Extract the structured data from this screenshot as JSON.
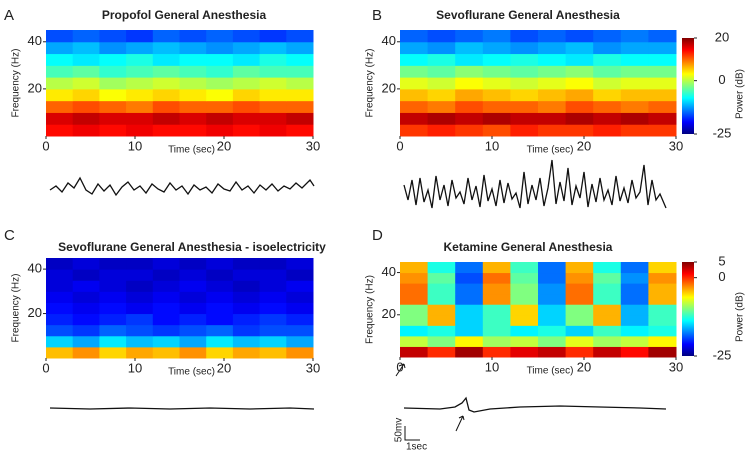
{
  "chart_data": [
    {
      "type": "heatmap",
      "panel": "A",
      "title": "Propofol General Anesthesia",
      "xlabel": "Time (sec)",
      "ylabel": "Frequency (Hz)",
      "xlim": [
        0,
        30
      ],
      "ylim": [
        0,
        45
      ],
      "xticks": [
        0,
        10,
        20,
        30
      ],
      "yticks": [
        20,
        40
      ],
      "clim": [
        -25,
        20
      ],
      "z": [
        [
          14,
          15,
          14,
          15,
          14,
          14,
          15,
          14,
          15,
          14
        ],
        [
          16,
          17,
          16,
          16,
          17,
          16,
          17,
          16,
          16,
          17
        ],
        [
          10,
          11,
          10,
          9,
          11,
          10,
          10,
          11,
          10,
          10
        ],
        [
          4,
          5,
          3,
          4,
          5,
          4,
          3,
          5,
          4,
          4
        ],
        [
          0,
          1,
          -1,
          0,
          1,
          0,
          -1,
          0,
          1,
          0
        ],
        [
          -5,
          -4,
          -6,
          -5,
          -4,
          -5,
          -6,
          -4,
          -5,
          -5
        ],
        [
          -8,
          -9,
          -8,
          -7,
          -9,
          -8,
          -8,
          -9,
          -7,
          -8
        ],
        [
          -12,
          -11,
          -13,
          -12,
          -11,
          -12,
          -13,
          -12,
          -11,
          -12
        ],
        [
          -16,
          -15,
          -16,
          -17,
          -15,
          -16,
          -15,
          -16,
          -17,
          -16
        ]
      ]
    },
    {
      "type": "heatmap",
      "panel": "B",
      "title": "Sevoflurane  General Anesthesia",
      "xlabel": "Time (sec)",
      "ylabel": "Frequency (Hz)",
      "xlim": [
        0,
        30
      ],
      "ylim": [
        0,
        45
      ],
      "xticks": [
        0,
        10,
        20,
        30
      ],
      "yticks": [
        20,
        40
      ],
      "clim": [
        -25,
        20
      ],
      "colorbar_label": "Power (dB)",
      "colorbar_ticks": [
        20,
        0,
        -25
      ],
      "z": [
        [
          12,
          13,
          12,
          11,
          13,
          12,
          12,
          13,
          12,
          12
        ],
        [
          17,
          18,
          17,
          18,
          17,
          17,
          18,
          17,
          18,
          17
        ],
        [
          10,
          9,
          11,
          10,
          10,
          9,
          11,
          10,
          9,
          10
        ],
        [
          6,
          5,
          7,
          6,
          5,
          6,
          7,
          5,
          6,
          6
        ],
        [
          2,
          1,
          3,
          2,
          1,
          2,
          3,
          1,
          2,
          2
        ],
        [
          -3,
          -4,
          -2,
          -3,
          -4,
          -3,
          -2,
          -4,
          -3,
          -3
        ],
        [
          -8,
          -7,
          -9,
          -8,
          -7,
          -8,
          -9,
          -7,
          -8,
          -8
        ],
        [
          -12,
          -13,
          -11,
          -12,
          -13,
          -12,
          -11,
          -13,
          -12,
          -12
        ],
        [
          -15,
          -16,
          -15,
          -14,
          -16,
          -15,
          -16,
          -15,
          -14,
          -15
        ]
      ]
    },
    {
      "type": "heatmap",
      "panel": "C",
      "title": "Sevoflurane General Anesthesia - isoelectricity",
      "xlabel": "Time (sec)",
      "ylabel": "Frequency (Hz)",
      "xlim": [
        0,
        30
      ],
      "ylim": [
        0,
        45
      ],
      "xticks": [
        0,
        10,
        20,
        30
      ],
      "yticks": [
        20,
        40
      ],
      "clim": [
        -25,
        20
      ],
      "z": [
        [
          6,
          8,
          5,
          7,
          6,
          8,
          5,
          7,
          6,
          8
        ],
        [
          -10,
          -12,
          -9,
          -11,
          -10,
          -12,
          -9,
          -11,
          -10,
          -12
        ],
        [
          -16,
          -17,
          -15,
          -16,
          -17,
          -16,
          -15,
          -17,
          -16,
          -16
        ],
        [
          -18,
          -19,
          -18,
          -17,
          -19,
          -18,
          -19,
          -18,
          -17,
          -18
        ],
        [
          -19,
          -20,
          -19,
          -20,
          -19,
          -20,
          -19,
          -20,
          -19,
          -20
        ],
        [
          -20,
          -21,
          -20,
          -21,
          -20,
          -21,
          -20,
          -21,
          -20,
          -21
        ],
        [
          -21,
          -20,
          -21,
          -22,
          -21,
          -20,
          -21,
          -22,
          -21,
          -20
        ],
        [
          -21,
          -22,
          -21,
          -21,
          -22,
          -21,
          -22,
          -21,
          -21,
          -22
        ],
        [
          -22,
          -21,
          -22,
          -22,
          -21,
          -22,
          -21,
          -22,
          -22,
          -21
        ]
      ]
    },
    {
      "type": "heatmap",
      "panel": "D",
      "title": "Ketamine General Anesthesia",
      "xlabel": "Time (sec)",
      "ylabel": "Frequency (Hz)",
      "xlim": [
        0,
        30
      ],
      "ylim": [
        0,
        45
      ],
      "xticks": [
        0,
        10,
        20,
        30
      ],
      "yticks": [
        20,
        40
      ],
      "clim": [
        -25,
        5
      ],
      "colorbar_label": "Power (dB)",
      "colorbar_ticks": [
        5,
        0,
        -25
      ],
      "z": [
        [
          3,
          0,
          4,
          0,
          2,
          3,
          0,
          3,
          1,
          4
        ],
        [
          -8,
          -10,
          -6,
          -9,
          -8,
          -10,
          -7,
          -9,
          -8,
          -6
        ],
        [
          -14,
          -13,
          -15,
          -12,
          -14,
          -13,
          -15,
          -12,
          -14,
          -13
        ],
        [
          -10,
          -4,
          -15,
          -12,
          -5,
          -15,
          -10,
          -4,
          -16,
          -12
        ],
        [
          -10,
          -4,
          -15,
          -12,
          -5,
          -15,
          -10,
          -4,
          -16,
          -12
        ],
        [
          -2,
          -12,
          -18,
          -3,
          -10,
          -17,
          -2,
          -12,
          -18,
          -4
        ],
        [
          -2,
          -12,
          -18,
          -3,
          -10,
          -17,
          -2,
          -12,
          -18,
          -4
        ],
        [
          -3,
          -11,
          -19,
          -2,
          -11,
          -18,
          -3,
          -11,
          -17,
          -3
        ],
        [
          -4,
          -13,
          -18,
          -4,
          -12,
          -18,
          -4,
          -13,
          -18,
          -5
        ]
      ]
    }
  ],
  "scale_bar": {
    "voltage": "50mv",
    "time": "1sec"
  }
}
